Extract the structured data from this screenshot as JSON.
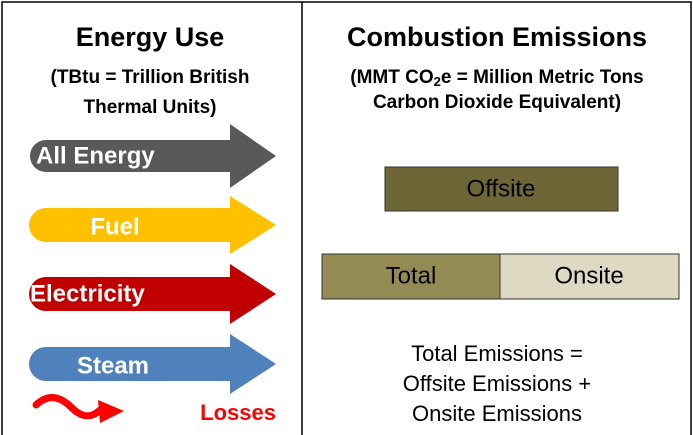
{
  "energy": {
    "title": "Energy Use",
    "subtitle": [
      "(TBtu = Trillion British",
      "Thermal Units)"
    ],
    "arrows": [
      "All Energy",
      "Fuel",
      "Electricity",
      "Steam"
    ],
    "losses": "Losses"
  },
  "emissions": {
    "title": "Combustion Emissions",
    "subtitle_parts": [
      "(MMT CO",
      "2",
      "e = Million Metric Tons",
      "Carbon Dioxide Equivalent)"
    ],
    "boxes": [
      "Offsite",
      "Total",
      "Onsite"
    ],
    "caption": [
      "Total Emissions =",
      "Offsite Emissions +",
      "Onsite Emissions"
    ]
  }
}
